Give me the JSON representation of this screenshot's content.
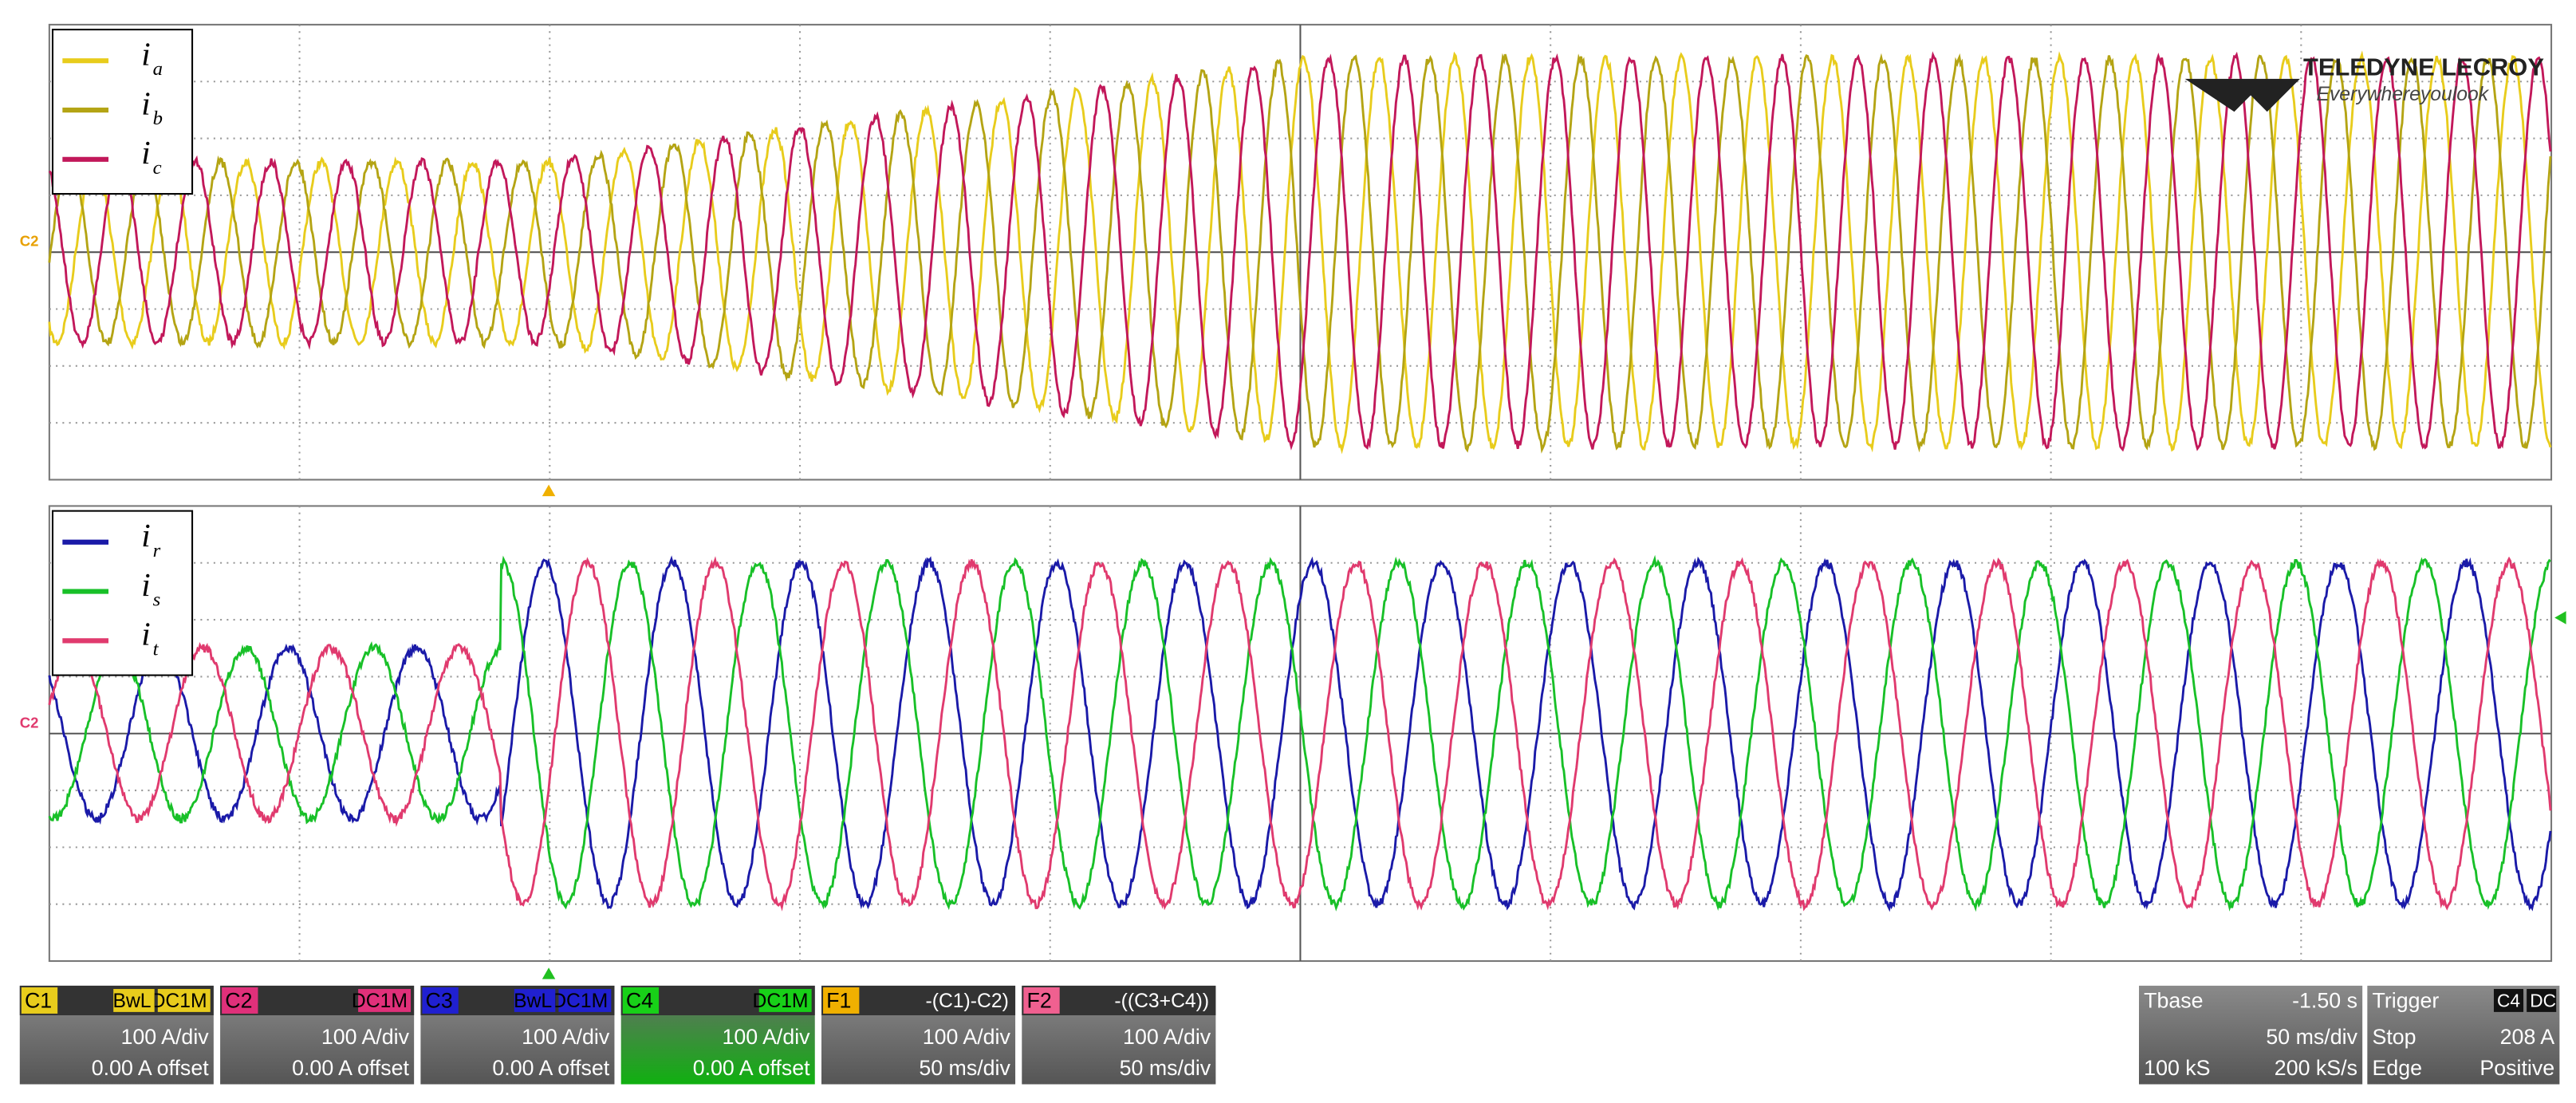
{
  "legends": [
    [
      {
        "symbol": "i",
        "subscript": "a"
      },
      {
        "symbol": "i",
        "subscript": "b"
      },
      {
        "symbol": "i",
        "subscript": "c"
      }
    ],
    [
      {
        "symbol": "i",
        "subscript": "r"
      },
      {
        "symbol": "i",
        "subscript": "s"
      },
      {
        "symbol": "i",
        "subscript": "t"
      }
    ]
  ],
  "logo": {
    "brand": "TELEDYNE LECROY",
    "tagline": "Everywhereyoulook"
  },
  "markers": [
    "C2",
    "C2"
  ],
  "channels": [
    {
      "id": "C1",
      "tags": [
        "BwL",
        "DC1M"
      ],
      "lines": [
        "100 A/div",
        "0.00 A offset"
      ]
    },
    {
      "id": "C2",
      "tags": [
        "DC1M"
      ],
      "lines": [
        "100 A/div",
        "0.00 A offset"
      ]
    },
    {
      "id": "C3",
      "tags": [
        "BwL",
        "DC1M"
      ],
      "lines": [
        "100 A/div",
        "0.00 A offset"
      ]
    },
    {
      "id": "C4",
      "tags": [
        "DC1M"
      ],
      "lines": [
        "100 A/div",
        "0.00 A offset"
      ]
    },
    {
      "id": "F1",
      "tags": [
        "-(C1)-C2)"
      ],
      "lines": [
        "100 A/div",
        "50 ms/div"
      ]
    },
    {
      "id": "F2",
      "tags": [
        "-((C3+C4))"
      ],
      "lines": [
        "100 A/div",
        "50 ms/div"
      ]
    }
  ],
  "timebase": {
    "label": "Tbase",
    "delay": "-1.50 s",
    "scale": "50 ms/div",
    "samples": "100 kS",
    "rate": "200 kS/s"
  },
  "trigger": {
    "label": "Trigger",
    "source": "C4",
    "coupling": "DC",
    "mode": "Stop",
    "level": "208 A",
    "type": "Edge",
    "slope": "Positive"
  }
}
